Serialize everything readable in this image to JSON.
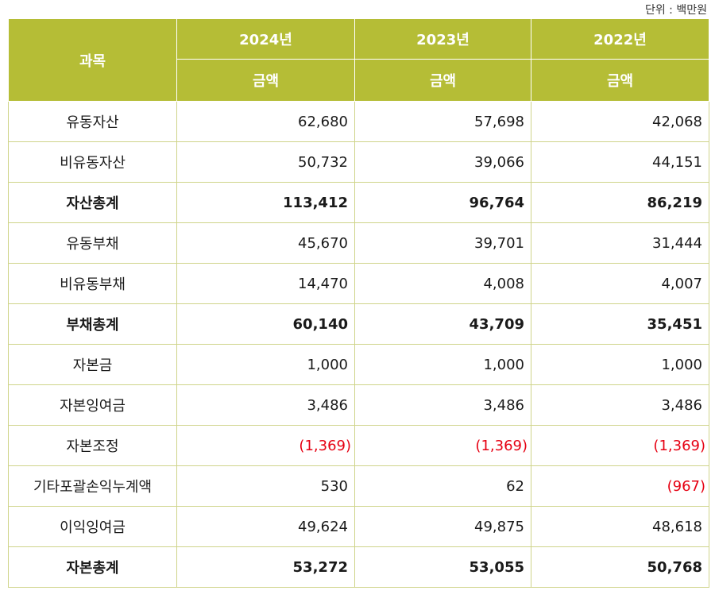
{
  "unit_label": "단위 : 백만원",
  "header": {
    "subject": "과목",
    "years": [
      "2024년",
      "2023년",
      "2022년"
    ],
    "amount_label": "금액"
  },
  "rows": [
    {
      "label": "유동자산",
      "values": [
        "62,680",
        "57,698",
        "42,068"
      ],
      "bold": false,
      "negative": [
        false,
        false,
        false
      ]
    },
    {
      "label": "비유동자산",
      "values": [
        "50,732",
        "39,066",
        "44,151"
      ],
      "bold": false,
      "negative": [
        false,
        false,
        false
      ]
    },
    {
      "label": "자산총계",
      "values": [
        "113,412",
        "96,764",
        "86,219"
      ],
      "bold": true,
      "negative": [
        false,
        false,
        false
      ]
    },
    {
      "label": "유동부채",
      "values": [
        "45,670",
        "39,701",
        "31,444"
      ],
      "bold": false,
      "negative": [
        false,
        false,
        false
      ]
    },
    {
      "label": "비유동부채",
      "values": [
        "14,470",
        "4,008",
        "4,007"
      ],
      "bold": false,
      "negative": [
        false,
        false,
        false
      ]
    },
    {
      "label": "부채총계",
      "values": [
        "60,140",
        "43,709",
        "35,451"
      ],
      "bold": true,
      "negative": [
        false,
        false,
        false
      ]
    },
    {
      "label": "자본금",
      "values": [
        "1,000",
        "1,000",
        "1,000"
      ],
      "bold": false,
      "negative": [
        false,
        false,
        false
      ]
    },
    {
      "label": "자본잉여금",
      "values": [
        "3,486",
        "3,486",
        "3,486"
      ],
      "bold": false,
      "negative": [
        false,
        false,
        false
      ]
    },
    {
      "label": "자본조정",
      "values": [
        "(1,369)",
        "(1,369)",
        "(1,369)"
      ],
      "bold": false,
      "negative": [
        true,
        true,
        true
      ]
    },
    {
      "label": "기타포괄손익누계액",
      "values": [
        "530",
        "62",
        "(967)"
      ],
      "bold": false,
      "negative": [
        false,
        false,
        true
      ]
    },
    {
      "label": "이익잉여금",
      "values": [
        "49,624",
        "49,875",
        "48,618"
      ],
      "bold": false,
      "negative": [
        false,
        false,
        false
      ]
    },
    {
      "label": "자본총계",
      "values": [
        "53,272",
        "53,055",
        "50,768"
      ],
      "bold": true,
      "negative": [
        false,
        false,
        false
      ]
    }
  ],
  "colors": {
    "header_bg": "#b5bd36",
    "border": "#cfd48a",
    "negative": "#e60012"
  }
}
